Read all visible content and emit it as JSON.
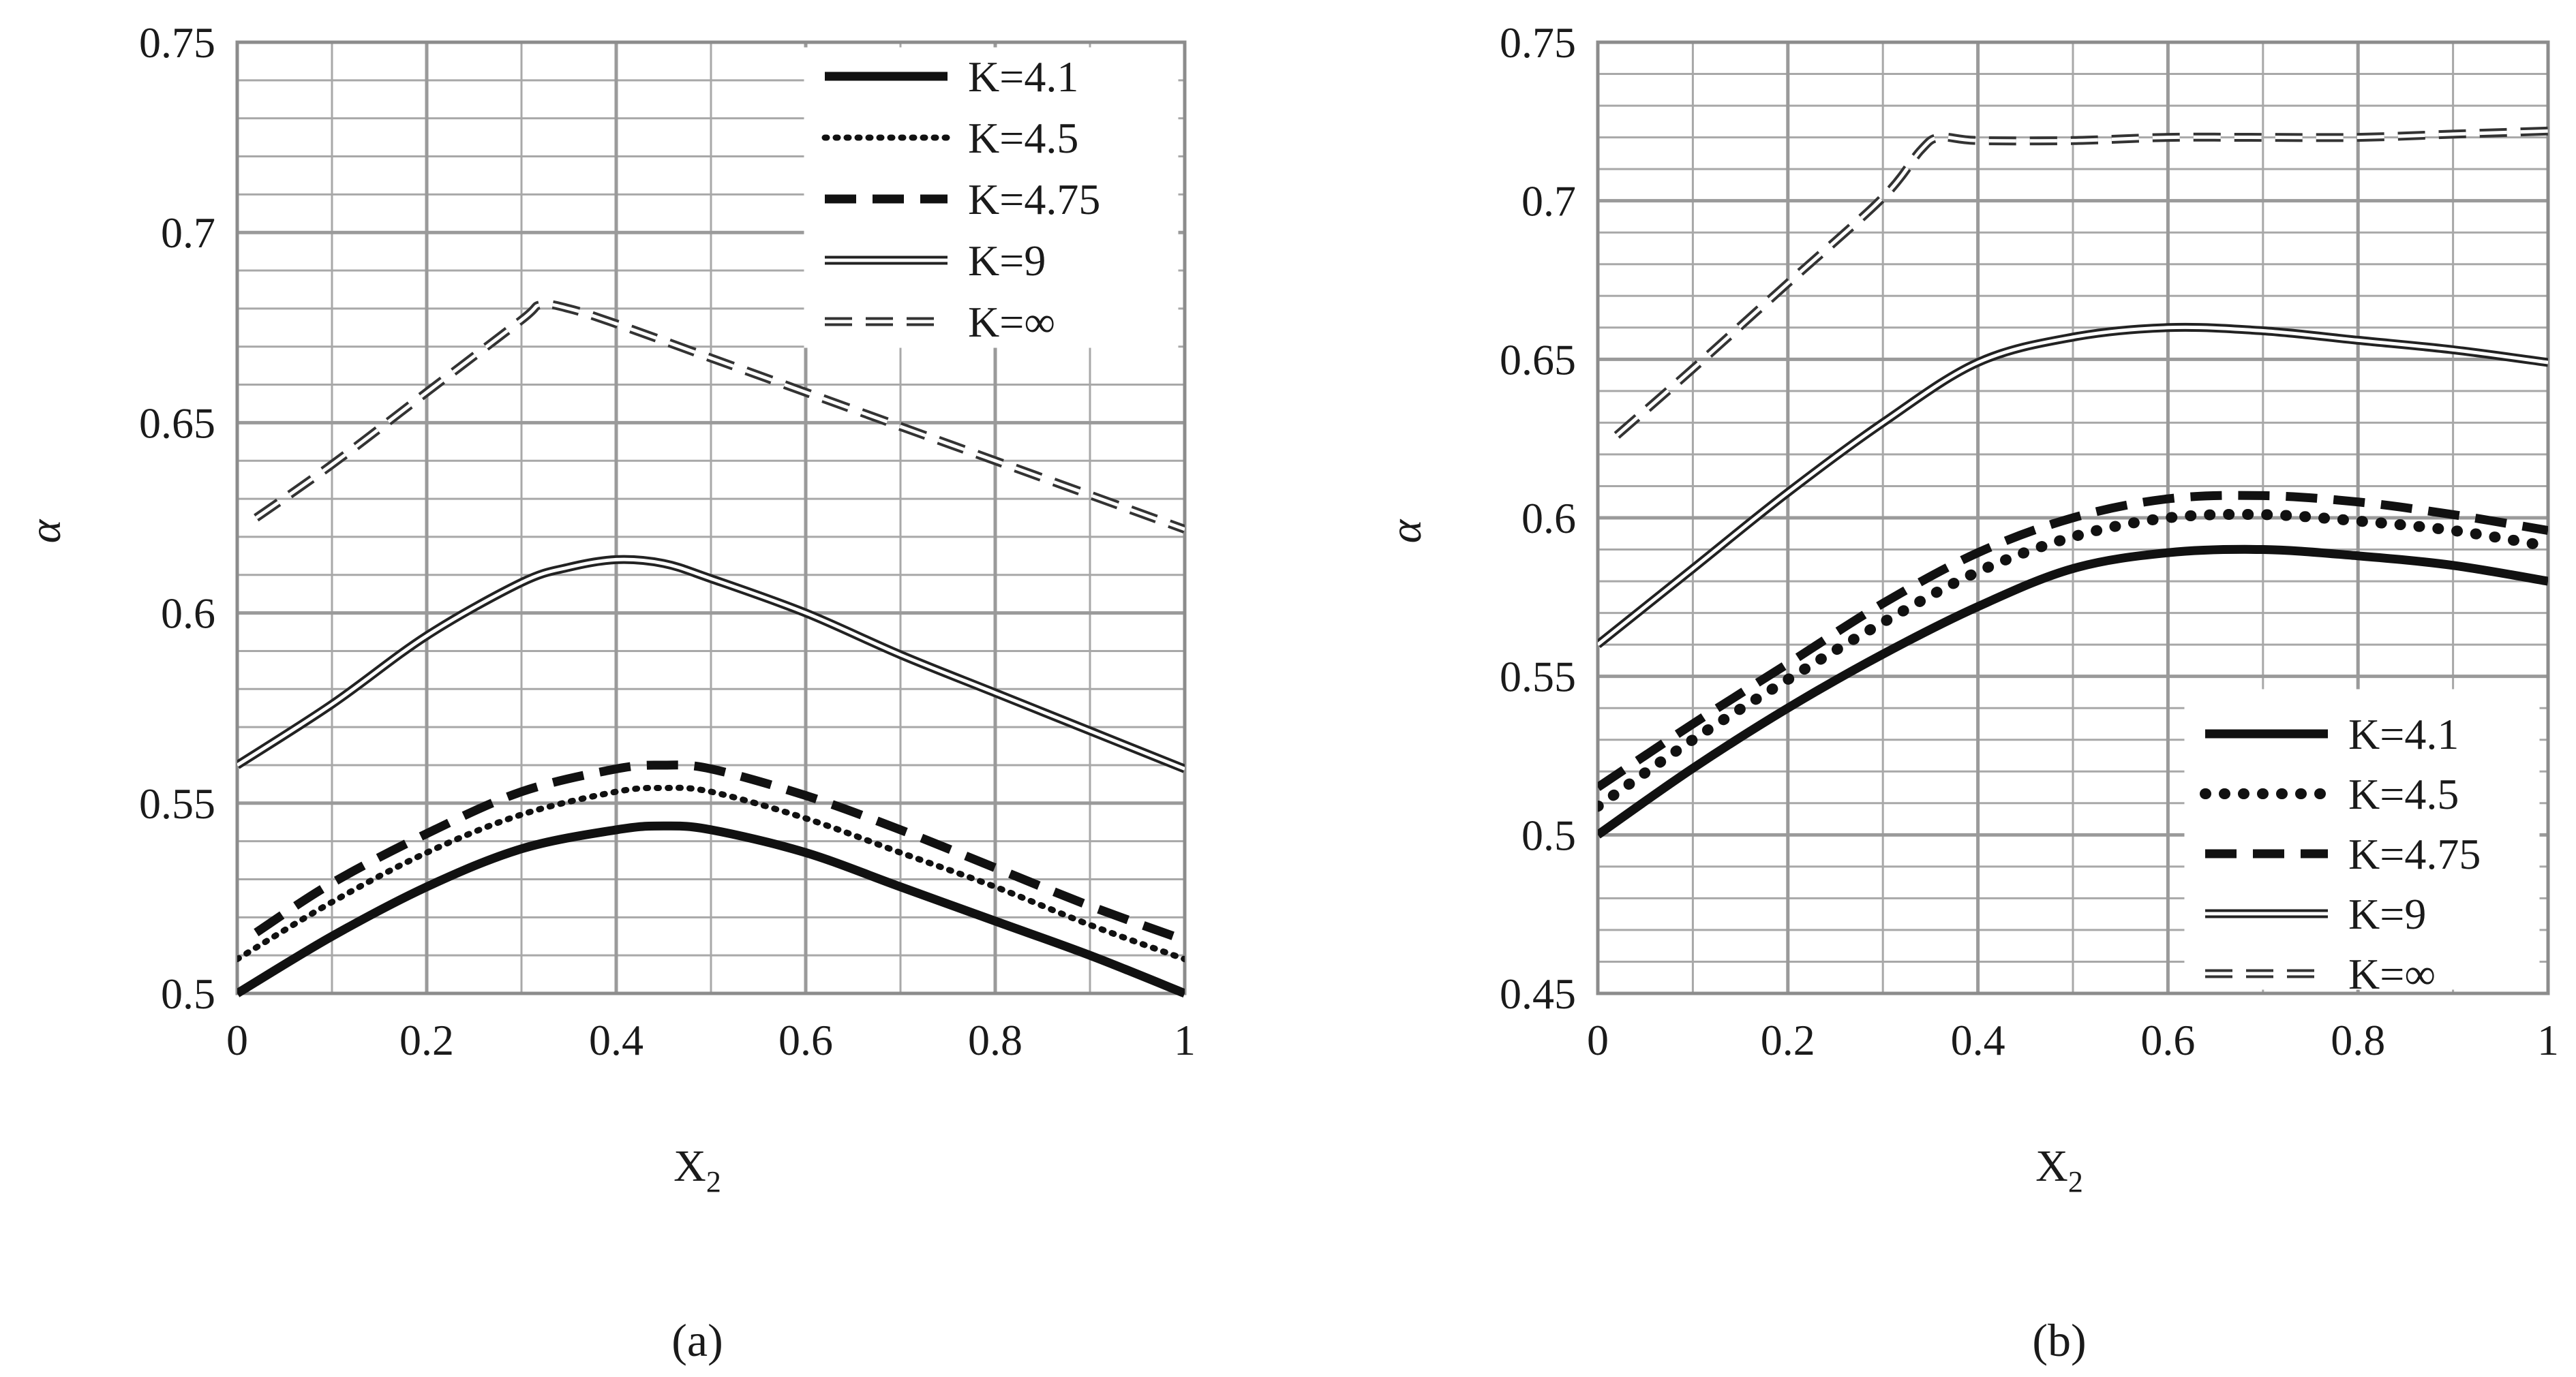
{
  "chart_data": [
    {
      "type": "line",
      "caption": "(a)",
      "xlabel": "X",
      "xlabel_sub": "2",
      "ylabel": "α",
      "xlim": [
        0,
        1
      ],
      "ylim": [
        0.5,
        0.75
      ],
      "x_ticks": [
        "0",
        "0.2",
        "0.4",
        "0.6",
        "0.8",
        "1"
      ],
      "y_ticks": [
        "0.5",
        "0.55",
        "0.6",
        "0.65",
        "0.7",
        "0.75"
      ],
      "grid": true,
      "legend_position": "top-right",
      "series": [
        {
          "name": "K=4.1",
          "style": "solid-thick",
          "x": [
            0,
            0.1,
            0.2,
            0.3,
            0.4,
            0.45,
            0.5,
            0.6,
            0.7,
            0.8,
            0.9,
            1.0
          ],
          "y": [
            0.5,
            0.515,
            0.528,
            0.538,
            0.543,
            0.544,
            0.543,
            0.537,
            0.528,
            0.519,
            0.51,
            0.5
          ]
        },
        {
          "name": "K=4.5",
          "style": "dotted",
          "x": [
            0,
            0.1,
            0.2,
            0.3,
            0.4,
            0.45,
            0.5,
            0.6,
            0.7,
            0.8,
            0.9,
            1.0
          ],
          "y": [
            0.509,
            0.524,
            0.537,
            0.547,
            0.553,
            0.554,
            0.553,
            0.546,
            0.537,
            0.528,
            0.518,
            0.509
          ]
        },
        {
          "name": "K=4.75",
          "style": "dashed-thick",
          "x": [
            0.02,
            0.1,
            0.2,
            0.3,
            0.4,
            0.45,
            0.5,
            0.6,
            0.7,
            0.8,
            0.9,
            1.0
          ],
          "y": [
            0.516,
            0.529,
            0.542,
            0.553,
            0.559,
            0.56,
            0.559,
            0.552,
            0.543,
            0.533,
            0.523,
            0.514
          ]
        },
        {
          "name": "K=9",
          "style": "double",
          "x": [
            0,
            0.1,
            0.2,
            0.3,
            0.35,
            0.4,
            0.45,
            0.5,
            0.6,
            0.7,
            0.8,
            0.9,
            1.0
          ],
          "y": [
            0.56,
            0.576,
            0.594,
            0.608,
            0.612,
            0.614,
            0.613,
            0.609,
            0.6,
            0.589,
            0.579,
            0.569,
            0.559
          ]
        },
        {
          "name": "K=∞",
          "style": "double-dashed",
          "x": [
            0.02,
            0.1,
            0.2,
            0.3,
            0.32,
            0.35,
            0.4,
            0.5,
            0.6,
            0.7,
            0.8,
            0.9,
            1.0
          ],
          "y": [
            0.625,
            0.639,
            0.658,
            0.677,
            0.681,
            0.68,
            0.676,
            0.667,
            0.658,
            0.649,
            0.64,
            0.631,
            0.622
          ]
        }
      ]
    },
    {
      "type": "line",
      "caption": "(b)",
      "xlabel": "X",
      "xlabel_sub": "2",
      "ylabel": "α",
      "xlim": [
        0,
        1
      ],
      "ylim": [
        0.45,
        0.75
      ],
      "x_ticks": [
        "0",
        "0.2",
        "0.4",
        "0.6",
        "0.8",
        "1"
      ],
      "y_ticks": [
        "0.45",
        "0.5",
        "0.55",
        "0.6",
        "0.65",
        "0.7",
        "0.75"
      ],
      "grid": true,
      "legend_position": "bottom-right",
      "series": [
        {
          "name": "K=4.1",
          "style": "solid-thick",
          "x": [
            0,
            0.1,
            0.2,
            0.3,
            0.4,
            0.5,
            0.6,
            0.7,
            0.8,
            0.9,
            1.0
          ],
          "y": [
            0.5,
            0.521,
            0.54,
            0.557,
            0.572,
            0.584,
            0.589,
            0.59,
            0.588,
            0.585,
            0.58
          ]
        },
        {
          "name": "K=4.5",
          "style": "dotted-thick",
          "x": [
            0,
            0.1,
            0.2,
            0.3,
            0.4,
            0.5,
            0.6,
            0.7,
            0.8,
            0.9,
            1.0
          ],
          "y": [
            0.509,
            0.53,
            0.549,
            0.567,
            0.583,
            0.594,
            0.6,
            0.601,
            0.599,
            0.596,
            0.591
          ]
        },
        {
          "name": "K=4.75",
          "style": "dashed-thick",
          "x": [
            0,
            0.1,
            0.2,
            0.3,
            0.4,
            0.5,
            0.6,
            0.7,
            0.8,
            0.9,
            1.0
          ],
          "y": [
            0.515,
            0.535,
            0.554,
            0.573,
            0.589,
            0.6,
            0.606,
            0.607,
            0.605,
            0.601,
            0.596
          ]
        },
        {
          "name": "K=9",
          "style": "double",
          "x": [
            0,
            0.1,
            0.2,
            0.3,
            0.4,
            0.5,
            0.6,
            0.7,
            0.8,
            0.9,
            1.0
          ],
          "y": [
            0.56,
            0.584,
            0.608,
            0.63,
            0.649,
            0.657,
            0.66,
            0.659,
            0.656,
            0.653,
            0.649
          ]
        },
        {
          "name": "K=∞",
          "style": "double-dashed",
          "x": [
            0.02,
            0.1,
            0.2,
            0.3,
            0.34,
            0.36,
            0.4,
            0.5,
            0.6,
            0.7,
            0.8,
            0.9,
            1.0
          ],
          "y": [
            0.626,
            0.647,
            0.674,
            0.701,
            0.716,
            0.72,
            0.719,
            0.719,
            0.72,
            0.72,
            0.72,
            0.721,
            0.722
          ]
        }
      ]
    }
  ]
}
